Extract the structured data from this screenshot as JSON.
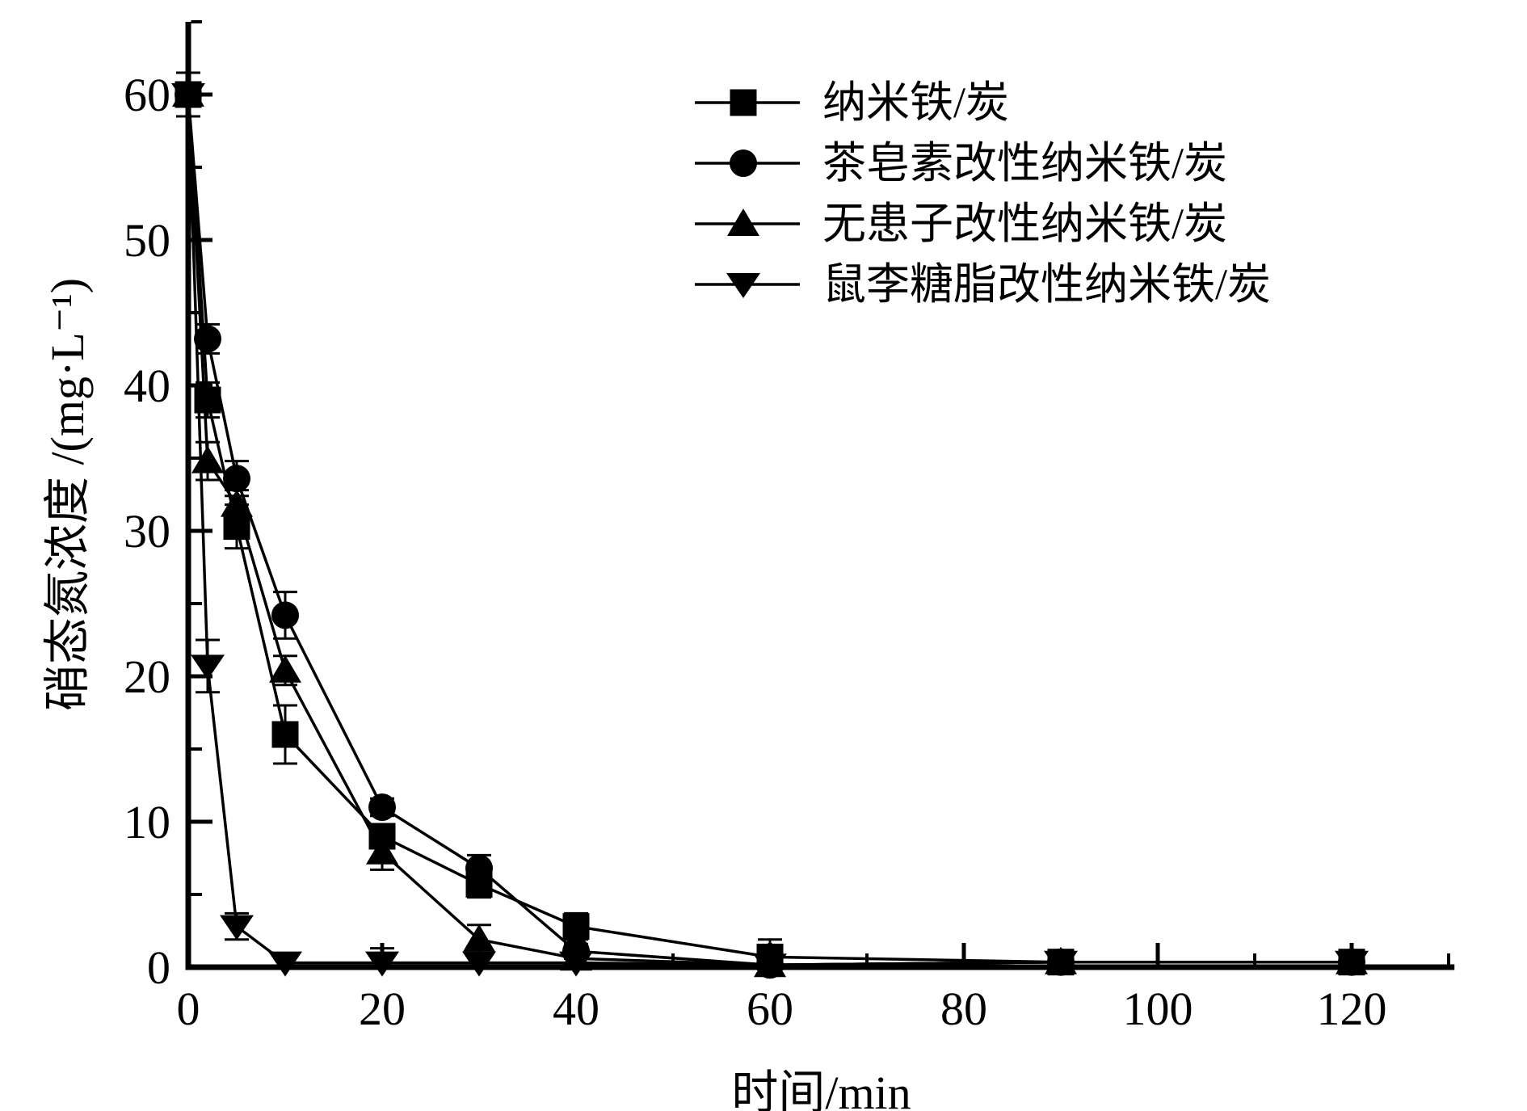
{
  "chart_data": {
    "type": "line",
    "title": "",
    "background": "#ffffff",
    "color": "#000000",
    "grid": false,
    "legend_position": "top-right-inside",
    "x_axis": {
      "label": "时间/min",
      "range": [
        0,
        130.6
      ],
      "major_ticks": [
        0,
        20,
        40,
        60,
        80,
        100,
        120
      ],
      "minor_ticks": [
        10,
        30,
        50,
        70,
        90,
        110,
        130
      ]
    },
    "y_axis": {
      "label": "硝态氮浓度 /(mg·L⁻¹)",
      "range": [
        0,
        65
      ],
      "major_ticks": [
        0,
        10,
        20,
        30,
        40,
        50,
        60
      ],
      "minor_ticks": [
        5,
        15,
        25,
        35,
        45,
        55,
        65
      ]
    },
    "x": [
      0,
      2,
      5,
      10,
      20,
      30,
      40,
      60,
      90,
      120
    ],
    "series": [
      {
        "name": "纳米铁/炭",
        "marker": "square",
        "values": [
          60,
          39,
          30.3,
          16,
          9,
          5.7,
          2.8,
          0.7,
          0.35,
          0.35
        ],
        "errors": [
          1.5,
          1.2,
          1.5,
          2.0,
          0.8,
          0.9,
          0.9,
          1.2,
          0.3,
          0.3
        ]
      },
      {
        "name": "茶皂素改性纳米铁/炭",
        "marker": "circle",
        "values": [
          60,
          43.2,
          33.6,
          24.2,
          11,
          6.8,
          1.1,
          0.15,
          0.35,
          0.35
        ],
        "errors": [
          1.5,
          1.0,
          1.2,
          1.6,
          0.6,
          0.9,
          0.5,
          0.2,
          0.3,
          0.3
        ]
      },
      {
        "name": "无患子改性纳米铁/炭",
        "marker": "triangle-up",
        "values": [
          60,
          34.8,
          31.8,
          20.4,
          7.9,
          1.9,
          0.6,
          0.15,
          0.35,
          0.35
        ],
        "errors": [
          1.5,
          1.3,
          1.0,
          1.0,
          1.2,
          1.0,
          0.4,
          0.2,
          0.3,
          0.3
        ]
      },
      {
        "name": "鼠李糖脂改性纳米铁/炭",
        "marker": "triangle-down",
        "values": [
          60,
          20.7,
          2.8,
          0.3,
          0.3,
          0.3,
          0.3,
          0.15,
          0.35,
          0.35
        ],
        "errors": [
          1.5,
          1.8,
          0.9,
          0.4,
          1.0,
          0.4,
          0.3,
          0.2,
          0.3,
          0.3
        ]
      }
    ]
  }
}
